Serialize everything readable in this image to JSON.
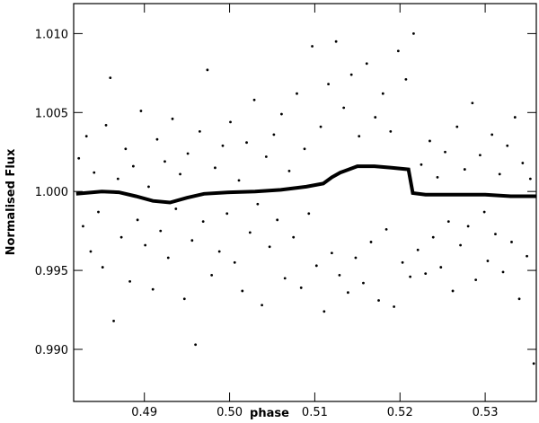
{
  "chart_data": {
    "type": "scatter",
    "x_label": "phase",
    "y_label": "Normalised Flux",
    "xlim": [
      0.4817,
      0.536
    ],
    "ylim": [
      0.9867,
      1.0119
    ],
    "xticks": [
      0.49,
      {
        "value": 0.5,
        "label": "0.50"
      },
      0.51,
      0.52,
      0.53
    ],
    "yticks": [
      {
        "value": 0.99,
        "label": "0.990"
      },
      0.995,
      {
        "value": 1.0,
        "label": "1.000"
      },
      1.005,
      {
        "value": 1.01,
        "label": "1.010"
      }
    ],
    "color": "#000000",
    "series": [
      {
        "marker": "dot",
        "x": [
          0.4823,
          0.4828,
          0.4832,
          0.4837,
          0.4841,
          0.4846,
          0.4851,
          0.4855,
          0.486,
          0.4864,
          0.4869,
          0.4873,
          0.4878,
          0.4883,
          0.4887,
          0.4892,
          0.4896,
          0.4901,
          0.4905,
          0.491,
          0.4915,
          0.4919,
          0.4924,
          0.4928,
          0.4933,
          0.4937,
          0.4942,
          0.4947,
          0.4951,
          0.4956,
          0.496,
          0.4965,
          0.4969,
          0.4974,
          0.4979,
          0.4983,
          0.4988,
          0.4992,
          0.4997,
          0.5001,
          0.5006,
          0.5011,
          0.5015,
          0.502,
          0.5024,
          0.5029,
          0.5033,
          0.5038,
          0.5043,
          0.5047,
          0.5052,
          0.5056,
          0.5061,
          0.5065,
          0.507,
          0.5075,
          0.5079,
          0.5084,
          0.5088,
          0.5093,
          0.5097,
          0.5102,
          0.5107,
          0.5111,
          0.5116,
          0.512,
          0.5125,
          0.5129,
          0.5134,
          0.5139,
          0.5143,
          0.5148,
          0.5152,
          0.5157,
          0.5161,
          0.5166,
          0.5171,
          0.5175,
          0.518,
          0.5184,
          0.5189,
          0.5193,
          0.5198,
          0.5203,
          0.5207,
          0.5212,
          0.5216,
          0.5221,
          0.5225,
          0.523,
          0.5235,
          0.5239,
          0.5244,
          0.5248,
          0.5253,
          0.5257,
          0.5262,
          0.5267,
          0.5271,
          0.5276,
          0.528,
          0.5285,
          0.5289,
          0.5294,
          0.5299,
          0.5303,
          0.5308,
          0.5312,
          0.5317,
          0.5321,
          0.5326,
          0.5331,
          0.5335,
          0.534,
          0.5344,
          0.5349,
          0.5353,
          0.5357
        ],
        "y": [
          1.0021,
          0.9978,
          1.0035,
          0.9962,
          1.0012,
          0.9987,
          0.9952,
          1.0042,
          1.0072,
          0.9918,
          1.0008,
          0.9971,
          1.0027,
          0.9943,
          1.0016,
          0.9982,
          1.0051,
          0.9966,
          1.0003,
          0.9938,
          1.0033,
          0.9975,
          1.0019,
          0.9958,
          1.0046,
          0.9989,
          1.0011,
          0.9932,
          1.0024,
          0.9969,
          0.9903,
          1.0038,
          0.9981,
          1.0077,
          0.9947,
          1.0015,
          0.9962,
          1.0029,
          0.9986,
          1.0044,
          0.9955,
          1.0007,
          0.9937,
          1.0031,
          0.9974,
          1.0058,
          0.9992,
          0.9928,
          1.0022,
          0.9965,
          1.0036,
          0.9982,
          1.0049,
          0.9945,
          1.0013,
          0.9971,
          1.0062,
          0.9939,
          1.0027,
          0.9986,
          1.0092,
          0.9953,
          1.0041,
          0.9924,
          1.0068,
          0.9961,
          1.0095,
          0.9947,
          1.0053,
          0.9936,
          1.0074,
          0.9958,
          1.0035,
          0.9942,
          1.0081,
          0.9968,
          1.0047,
          0.9931,
          1.0062,
          0.9976,
          1.0038,
          0.9927,
          1.0089,
          0.9955,
          1.0071,
          0.9946,
          1.01,
          0.9963,
          1.0017,
          0.9948,
          1.0032,
          0.9971,
          1.0009,
          0.9952,
          1.0025,
          0.9981,
          0.9937,
          1.0041,
          0.9966,
          1.0014,
          0.9978,
          1.0056,
          0.9944,
          1.0023,
          0.9987,
          0.9956,
          1.0036,
          0.9973,
          1.0011,
          0.9949,
          1.0029,
          0.9968,
          1.0047,
          0.9932,
          1.0018,
          0.9959,
          1.0008,
          0.9891
        ]
      },
      {
        "marker": "line",
        "x": [
          0.482,
          0.485,
          0.487,
          0.489,
          0.491,
          0.493,
          0.495,
          0.497,
          0.5,
          0.503,
          0.506,
          0.509,
          0.511,
          0.512,
          0.513,
          0.515,
          0.517,
          0.519,
          0.521,
          0.5215,
          0.523,
          0.525,
          0.527,
          0.53,
          0.533,
          0.536
        ],
        "y": [
          0.99985,
          1.0,
          0.99995,
          0.9997,
          0.9994,
          0.9993,
          0.9996,
          0.99985,
          0.99995,
          1.0,
          1.0001,
          1.0003,
          1.0005,
          1.0009,
          1.0012,
          1.0016,
          1.0016,
          1.0015,
          1.0014,
          0.9999,
          0.9998,
          0.9998,
          0.9998,
          0.9998,
          0.9997,
          0.9997
        ]
      }
    ]
  }
}
